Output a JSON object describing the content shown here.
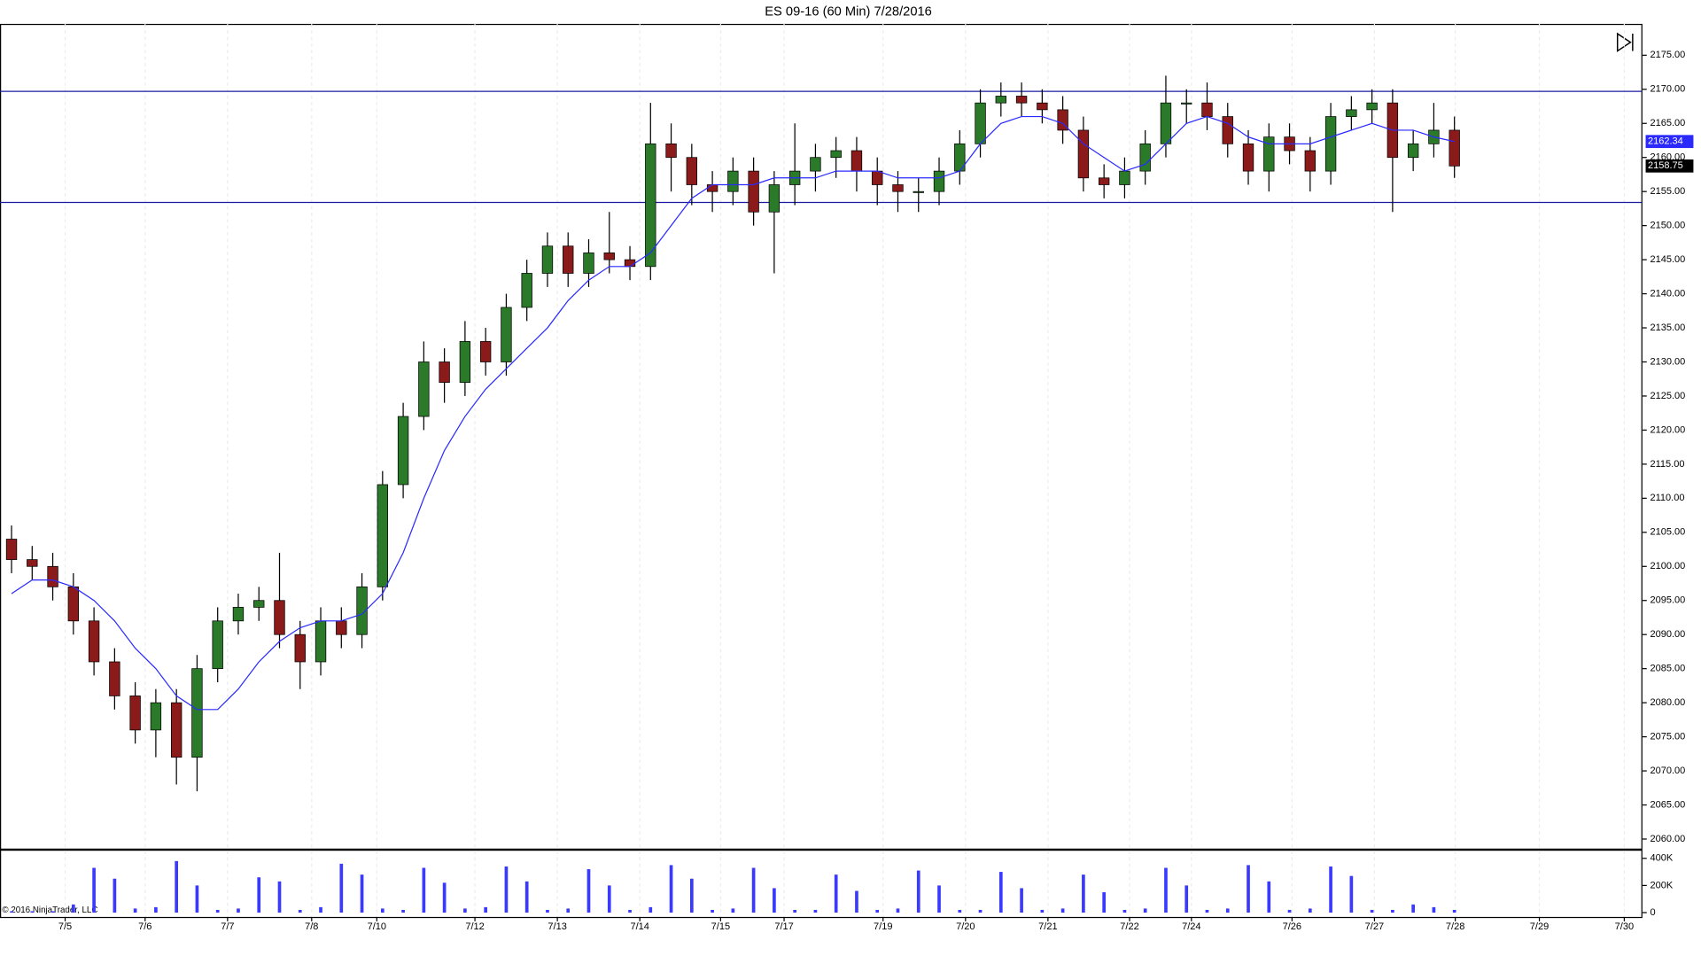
{
  "chart_data": {
    "type": "candlestick",
    "title": "ES 09-16 (60 Min)  7/28/2016",
    "copyright": "© 2016 NinjaTrader, LLC",
    "up_color": "#2a7a2a",
    "down_color": "#8b1a1a",
    "xlim": [
      -0.79,
      19.13
    ],
    "ylim": [
      2058.6,
      2179.6
    ],
    "xticks": [
      {
        "value": 0,
        "label": "7/5"
      },
      {
        "value": 0.97,
        "label": "7/6"
      },
      {
        "value": 1.97,
        "label": "7/7"
      },
      {
        "value": 2.99,
        "label": "7/8"
      },
      {
        "value": 3.78,
        "label": "7/10"
      },
      {
        "value": 4.97,
        "label": "7/12"
      },
      {
        "value": 5.97,
        "label": "7/13"
      },
      {
        "value": 6.97,
        "label": "7/14"
      },
      {
        "value": 7.95,
        "label": "7/15"
      },
      {
        "value": 8.72,
        "label": "7/17"
      },
      {
        "value": 9.92,
        "label": "7/19"
      },
      {
        "value": 10.92,
        "label": "7/20"
      },
      {
        "value": 11.92,
        "label": "7/21"
      },
      {
        "value": 12.91,
        "label": "7/22"
      },
      {
        "value": 13.66,
        "label": "7/24"
      },
      {
        "value": 14.88,
        "label": "7/26"
      },
      {
        "value": 15.88,
        "label": "7/27"
      },
      {
        "value": 16.86,
        "label": "7/28"
      },
      {
        "value": 17.88,
        "label": "7/29"
      },
      {
        "value": 18.91,
        "label": "7/30"
      }
    ],
    "yticks": [
      {
        "value": 2060,
        "label": "2060.00"
      },
      {
        "value": 2065,
        "label": "2065.00"
      },
      {
        "value": 2070,
        "label": "2070.00"
      },
      {
        "value": 2075,
        "label": "2075.00"
      },
      {
        "value": 2080,
        "label": "2080.00"
      },
      {
        "value": 2085,
        "label": "2085.00"
      },
      {
        "value": 2090,
        "label": "2090.00"
      },
      {
        "value": 2095,
        "label": "2095.00"
      },
      {
        "value": 2100,
        "label": "2100.00"
      },
      {
        "value": 2105,
        "label": "2105.00"
      },
      {
        "value": 2110,
        "label": "2110.00"
      },
      {
        "value": 2115,
        "label": "2115.00"
      },
      {
        "value": 2120,
        "label": "2120.00"
      },
      {
        "value": 2125,
        "label": "2125.00"
      },
      {
        "value": 2130,
        "label": "2130.00"
      },
      {
        "value": 2135,
        "label": "2135.00"
      },
      {
        "value": 2140,
        "label": "2140.00"
      },
      {
        "value": 2145,
        "label": "2145.00"
      },
      {
        "value": 2150,
        "label": "2150.00"
      },
      {
        "value": 2155,
        "label": "2155.00"
      },
      {
        "value": 2160,
        "label": "2160.00"
      },
      {
        "value": 2165,
        "label": "2165.00"
      },
      {
        "value": 2170,
        "label": "2170.00"
      },
      {
        "value": 2175,
        "label": "2175.00"
      }
    ],
    "x": [
      -0.65,
      -0.4,
      -0.15,
      0.1,
      0.35,
      0.6,
      0.85,
      1.1,
      1.35,
      1.6,
      1.85,
      2.1,
      2.35,
      2.6,
      2.85,
      3.1,
      3.35,
      3.6,
      3.85,
      4.1,
      4.35,
      4.6,
      4.85,
      5.1,
      5.35,
      5.6,
      5.85,
      6.1,
      6.35,
      6.6,
      6.85,
      7.1,
      7.35,
      7.6,
      7.85,
      8.1,
      8.35,
      8.6,
      8.85,
      9.1,
      9.35,
      9.6,
      9.85,
      10.1,
      10.35,
      10.6,
      10.85,
      11.1,
      11.35,
      11.6,
      11.85,
      12.1,
      12.35,
      12.6,
      12.85,
      13.1,
      13.35,
      13.6,
      13.85,
      14.1,
      14.35,
      14.6,
      14.85,
      15.1,
      15.35,
      15.6,
      15.85,
      16.1,
      16.35,
      16.6,
      16.85
    ],
    "open": [
      2104,
      2101,
      2100,
      2097,
      2092,
      2086,
      2081,
      2076,
      2080,
      2072,
      2085,
      2092,
      2094,
      2095,
      2090,
      2086,
      2092,
      2090,
      2097,
      2112,
      2122,
      2130,
      2127,
      2133,
      2130,
      2138,
      2143,
      2147,
      2143,
      2146,
      2145,
      2144,
      2162,
      2160,
      2156,
      2155,
      2158,
      2152,
      2156,
      2158,
      2160,
      2161,
      2158,
      2156,
      2155,
      2155,
      2158,
      2162,
      2168,
      2169,
      2168,
      2167,
      2164,
      2157,
      2156,
      2158,
      2162,
      2168,
      2168,
      2166,
      2162,
      2158,
      2163,
      2161,
      2158,
      2166,
      2167,
      2168,
      2160,
      2162,
      2164
    ],
    "high": [
      2106,
      2103,
      2102,
      2099,
      2094,
      2088,
      2083,
      2082,
      2082,
      2087,
      2094,
      2096,
      2097,
      2102,
      2092,
      2094,
      2094,
      2099,
      2114,
      2124,
      2133,
      2132,
      2136,
      2135,
      2140,
      2145,
      2149,
      2149,
      2148,
      2152,
      2147,
      2168,
      2165,
      2162,
      2158,
      2160,
      2160,
      2158,
      2165,
      2162,
      2163,
      2163,
      2160,
      2158,
      2157,
      2160,
      2164,
      2170,
      2171,
      2171,
      2170,
      2169,
      2166,
      2159,
      2160,
      2164,
      2172,
      2170,
      2171,
      2168,
      2164,
      2165,
      2165,
      2163,
      2168,
      2169,
      2170,
      2170,
      2164,
      2168,
      2166
    ],
    "low": [
      2099,
      2098,
      2095,
      2090,
      2084,
      2079,
      2074,
      2072,
      2068,
      2067,
      2083,
      2090,
      2092,
      2088,
      2082,
      2084,
      2088,
      2088,
      2095,
      2110,
      2120,
      2124,
      2125,
      2128,
      2128,
      2136,
      2141,
      2141,
      2141,
      2143,
      2142,
      2142,
      2155,
      2153,
      2152,
      2153,
      2150,
      2143,
      2153,
      2155,
      2157,
      2155,
      2153,
      2152,
      2152,
      2153,
      2156,
      2160,
      2166,
      2166,
      2165,
      2162,
      2155,
      2154,
      2154,
      2156,
      2160,
      2165,
      2164,
      2160,
      2156,
      2155,
      2159,
      2155,
      2156,
      2164,
      2165,
      2152,
      2158,
      2160,
      2157
    ],
    "close": [
      2101,
      2100,
      2097,
      2092,
      2086,
      2081,
      2076,
      2080,
      2072,
      2085,
      2092,
      2094,
      2095,
      2090,
      2086,
      2092,
      2090,
      2097,
      2112,
      2122,
      2130,
      2127,
      2133,
      2130,
      2138,
      2143,
      2147,
      2143,
      2146,
      2145,
      2144,
      2162,
      2160,
      2156,
      2155,
      2158,
      2152,
      2156,
      2158,
      2160,
      2161,
      2158,
      2156,
      2155,
      2155,
      2158,
      2162,
      2168,
      2169,
      2168,
      2167,
      2164,
      2157,
      2156,
      2158,
      2162,
      2168,
      2168,
      2166,
      2162,
      2158,
      2163,
      2161,
      2158,
      2166,
      2167,
      2168,
      2160,
      2162,
      2164,
      2158.75
    ],
    "sma": {
      "color": "#2a2aff",
      "values": [
        2096,
        2098,
        2098,
        2097,
        2095,
        2092,
        2088,
        2085,
        2081,
        2079,
        2079,
        2082,
        2086,
        2089,
        2091,
        2092,
        2092,
        2093,
        2096,
        2102,
        2110,
        2117,
        2122,
        2126,
        2129,
        2132,
        2135,
        2139,
        2142,
        2144,
        2144,
        2146,
        2150,
        2154,
        2156,
        2156,
        2156,
        2157,
        2157,
        2157,
        2158,
        2158,
        2158,
        2157,
        2157,
        2157,
        2158,
        2162,
        2165,
        2166,
        2166,
        2165,
        2162,
        2160,
        2158,
        2159,
        2162,
        2165,
        2166,
        2165,
        2163,
        2162,
        2162,
        2162,
        2163,
        2164,
        2165,
        2164,
        2164,
        2163,
        2162.34
      ]
    },
    "hlines": {
      "color": "#1a1aa0",
      "values": [
        2169.7,
        2153.4
      ]
    },
    "volume": {
      "color": "#3a3aff",
      "ylim": [
        -32000,
        464000
      ],
      "yticks": [
        0,
        {
          "value": 200000,
          "label": "200K"
        },
        {
          "value": 400000,
          "label": "400K"
        }
      ],
      "values": [
        10000,
        10000,
        10000,
        60000,
        330000,
        250000,
        30000,
        40000,
        380000,
        200000,
        20000,
        30000,
        260000,
        230000,
        20000,
        40000,
        360000,
        280000,
        30000,
        20000,
        330000,
        220000,
        30000,
        40000,
        340000,
        230000,
        20000,
        30000,
        320000,
        200000,
        20000,
        40000,
        350000,
        250000,
        20000,
        30000,
        330000,
        180000,
        20000,
        20000,
        280000,
        160000,
        20000,
        30000,
        310000,
        200000,
        20000,
        20000,
        300000,
        180000,
        20000,
        30000,
        280000,
        150000,
        20000,
        30000,
        330000,
        200000,
        20000,
        30000,
        350000,
        230000,
        20000,
        30000,
        340000,
        270000,
        20000,
        20000,
        60000,
        40000,
        20000
      ]
    }
  }
}
